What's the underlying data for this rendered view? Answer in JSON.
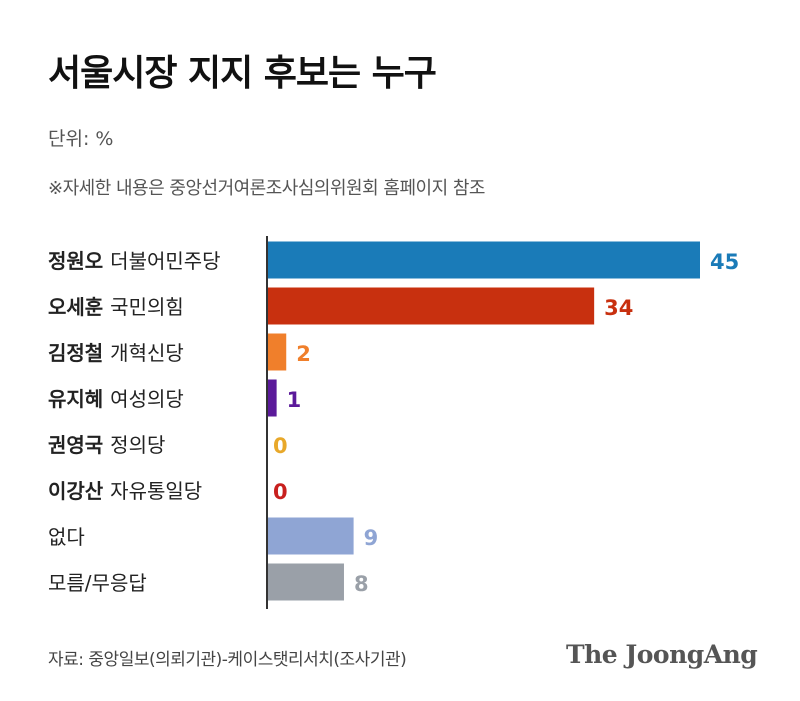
{
  "title": "서울시장 지지 후보는 누구",
  "unit_label": "단위: %",
  "note": "※자세한 내용은 중앙선거여론조사심의위원회 홈페이지 참조",
  "source": "자료: 중앙일보(의뢰기관)-케이스탯리서치(조사기관)",
  "brand": "The JoongAng",
  "chart_data": {
    "type": "bar",
    "orientation": "horizontal",
    "xlim": [
      0,
      45
    ],
    "grid": false,
    "categories": [
      {
        "name": "정원오",
        "party": "더불어민주당"
      },
      {
        "name": "오세훈",
        "party": "국민의힘"
      },
      {
        "name": "김정철",
        "party": "개혁신당"
      },
      {
        "name": "유지혜",
        "party": "여성의당"
      },
      {
        "name": "권영국",
        "party": "정의당"
      },
      {
        "name": "이강산",
        "party": "자유통일당"
      },
      {
        "name": "",
        "party": "없다"
      },
      {
        "name": "",
        "party": "모름/무응답"
      }
    ],
    "values": [
      45,
      34,
      2,
      1,
      0,
      0,
      9,
      8
    ],
    "colors": [
      "#1a7bb8",
      "#c8300f",
      "#f07f2b",
      "#5b1a9a",
      "#e8a82a",
      "#c8201e",
      "#8fa5d4",
      "#9aa0a8"
    ]
  }
}
